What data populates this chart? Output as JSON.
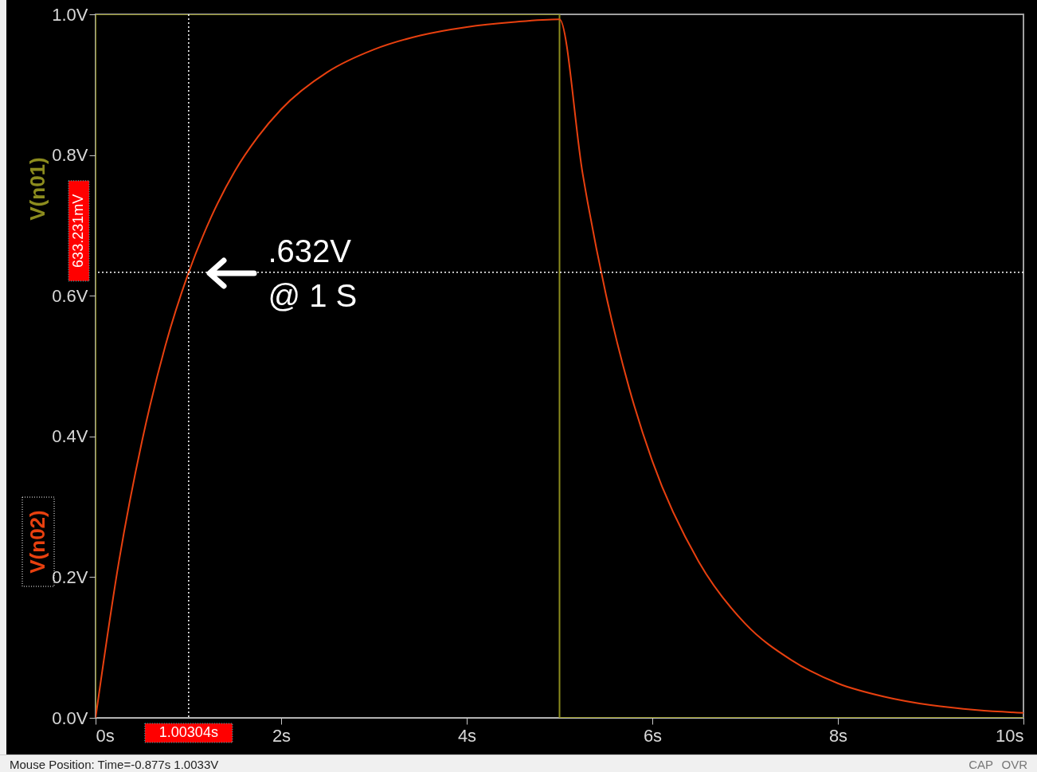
{
  "chart_data": {
    "type": "line",
    "xlim": [
      0,
      10
    ],
    "ylim": [
      0,
      1
    ],
    "xticks": [
      {
        "value": 0,
        "label": "0s"
      },
      {
        "value": 2,
        "label": "2s"
      },
      {
        "value": 4,
        "label": "4s"
      },
      {
        "value": 6,
        "label": "6s"
      },
      {
        "value": 8,
        "label": "8s"
      },
      {
        "value": 10,
        "label": "10s"
      }
    ],
    "yticks": [
      {
        "value": 0,
        "label": "0.0V"
      },
      {
        "value": 0.2,
        "label": "0.2V"
      },
      {
        "value": 0.4,
        "label": "0.4V"
      },
      {
        "value": 0.6,
        "label": "0.6V"
      },
      {
        "value": 0.8,
        "label": "0.8V"
      },
      {
        "value": 1,
        "label": "1.0V"
      }
    ],
    "grid": false,
    "legend": "left",
    "marker": "none",
    "line_style": "solid",
    "series": [
      {
        "name": "V(n01)",
        "color": "#8c8c1e",
        "x": [
          0,
          0,
          5,
          5,
          10
        ],
        "values": [
          0,
          1,
          1,
          0,
          0
        ]
      },
      {
        "name": "V(n02)",
        "color": "#e8400f",
        "x": [
          0,
          0.25,
          0.5,
          0.75,
          1,
          1.25,
          1.5,
          1.75,
          2,
          2.5,
          3,
          3.5,
          4,
          4.5,
          5,
          5.25,
          5.5,
          5.75,
          6,
          6.5,
          7,
          7.5,
          8,
          8.5,
          9,
          9.5,
          10
        ],
        "values": [
          0,
          0.221,
          0.393,
          0.528,
          0.632,
          0.713,
          0.777,
          0.826,
          0.865,
          0.918,
          0.95,
          0.97,
          0.982,
          0.989,
          0.993,
          0.773,
          0.602,
          0.469,
          0.365,
          0.222,
          0.134,
          0.082,
          0.049,
          0.03,
          0.018,
          0.011,
          0.007
        ]
      }
    ],
    "ref_lines": [
      {
        "axis": "x",
        "value": 1.00304,
        "label": "1.00304s",
        "color": "#ffffff",
        "line_style": "dotted"
      },
      {
        "axis": "y",
        "value": 0.633231,
        "label": "633.231mV",
        "color": "#ffffff",
        "line_style": "dotted"
      }
    ],
    "annotations": [
      {
        "text": ".632V\n@ 1 S",
        "x": 1,
        "y": 0.632
      },
      "Mouse Position: Time=-0.877s  1.0033V",
      "CAP",
      "OVR"
    ]
  }
}
